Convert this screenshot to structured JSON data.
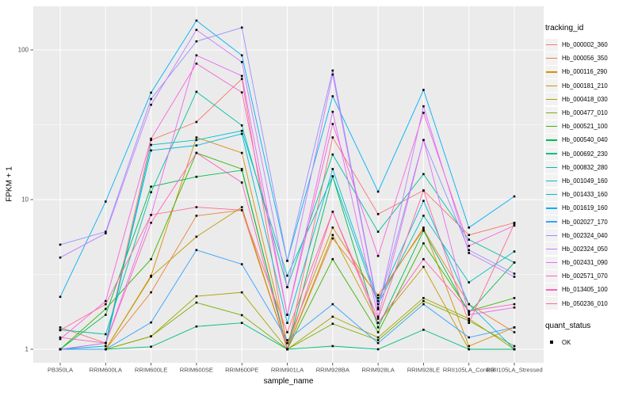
{
  "figure": {
    "xlabel": "sample_name",
    "ylabel": "FPKM + 1",
    "legend_title": "tracking_id",
    "legend2_title": "quant_status",
    "legend2_items": [
      {
        "label": "OK",
        "marker": "black-square"
      }
    ]
  },
  "chart_data": {
    "type": "line",
    "title": "",
    "xlabel": "sample_name",
    "ylabel": "FPKM + 1",
    "y_scale": "log10",
    "yticks": [
      1,
      10,
      100
    ],
    "ylim": [
      0.82,
      195
    ],
    "grid": "on",
    "legend_position": "right",
    "style": {
      "panel_bg": "#EBEBEB",
      "grid_color": "#FFFFFF",
      "point_color": "#000000",
      "axis_text_color": "#4D4D4D",
      "tick_color": "#333333",
      "legend_key_bg": "#F2F2F2"
    },
    "categories": [
      "PB350LA",
      "RRIM600LA",
      "RRIM600LE",
      "RRIM600SE",
      "RRIM600PE",
      "RRIM901LA",
      "RRIM928BA",
      "RRIM928LA",
      "RRIM928LE",
      "RRII105LA_Control",
      "RRII105LA_Stressed"
    ],
    "series": [
      {
        "name": "Hb_000002_360",
        "color": "#F8766D",
        "values": [
          1.4,
          1.1,
          25.0,
          33.0,
          64.0,
          1.0,
          26.0,
          8.0,
          11.5,
          5.8,
          7.0
        ]
      },
      {
        "name": "Hb_000056_350",
        "color": "#EA8331",
        "values": [
          1.0,
          1.0,
          2.4,
          7.8,
          8.5,
          1.0,
          5.5,
          2.3,
          6.3,
          2.0,
          1.3
        ]
      },
      {
        "name": "Hb_000116_290",
        "color": "#D89000",
        "values": [
          1.0,
          1.0,
          3.1,
          26.0,
          20.5,
          1.1,
          6.5,
          2.2,
          6.5,
          1.05,
          1.4
        ]
      },
      {
        "name": "Hb_000181_210",
        "color": "#C09B00",
        "values": [
          1.0,
          1.0,
          3.05,
          5.65,
          8.9,
          1.0,
          5.8,
          1.5,
          3.55,
          1.0,
          1.0
        ]
      },
      {
        "name": "Hb_000418_030",
        "color": "#A3A500",
        "values": [
          1.0,
          1.0,
          1.22,
          2.26,
          2.4,
          1.0,
          1.65,
          1.2,
          2.2,
          1.6,
          1.0
        ]
      },
      {
        "name": "Hb_000477_010",
        "color": "#7CAE00",
        "values": [
          1.0,
          1.0,
          1.22,
          2.05,
          1.69,
          1.0,
          1.48,
          1.15,
          2.1,
          1.55,
          1.05
        ]
      },
      {
        "name": "Hb_000521_100",
        "color": "#39B600",
        "values": [
          1.0,
          1.86,
          4.0,
          20.5,
          16.0,
          1.0,
          4.0,
          1.3,
          5.1,
          1.8,
          2.2
        ]
      },
      {
        "name": "Hb_000540_040",
        "color": "#00BB4E",
        "values": [
          1.0,
          1.7,
          12.2,
          14.2,
          15.7,
          1.0,
          14.3,
          1.4,
          6.2,
          1.75,
          3.8
        ]
      },
      {
        "name": "Hb_000692_230",
        "color": "#00BF7D",
        "values": [
          1.0,
          1.0,
          1.04,
          1.42,
          1.5,
          1.0,
          1.05,
          1.0,
          1.35,
          1.0,
          1.0
        ]
      },
      {
        "name": "Hb_000832_280",
        "color": "#00C1A3",
        "values": [
          1.35,
          1.26,
          11.2,
          52.5,
          31.3,
          2.6,
          20.0,
          6.1,
          14.8,
          5.4,
          3.8
        ]
      },
      {
        "name": "Hb_001049_160",
        "color": "#00BFC4",
        "values": [
          1.0,
          1.05,
          23.2,
          25.0,
          28.8,
          3.1,
          14.3,
          2.0,
          7.8,
          2.8,
          4.5
        ]
      },
      {
        "name": "Hb_001433_160",
        "color": "#00BAE0",
        "values": [
          1.0,
          1.1,
          21.3,
          23.0,
          27.5,
          1.5,
          16.0,
          2.1,
          9.8,
          2.0,
          1.0
        ]
      },
      {
        "name": "Hb_001619_160",
        "color": "#00B0F6",
        "values": [
          2.24,
          9.7,
          51.8,
          157.0,
          92.0,
          3.9,
          49.0,
          11.3,
          54.0,
          6.5,
          10.5
        ]
      },
      {
        "name": "Hb_002027_170",
        "color": "#35A2FF",
        "values": [
          1.0,
          1.0,
          1.51,
          4.6,
          3.7,
          1.15,
          2.0,
          1.1,
          2.0,
          1.2,
          1.4
        ]
      },
      {
        "name": "Hb_002324_040",
        "color": "#9590FF",
        "values": [
          5.0,
          6.1,
          47.0,
          114.0,
          141.0,
          3.9,
          72.8,
          1.9,
          25.0,
          4.6,
          3.2
        ]
      },
      {
        "name": "Hb_002324_050",
        "color": "#C77CFF",
        "values": [
          4.1,
          5.95,
          43.0,
          136.0,
          83.0,
          2.6,
          68.5,
          1.85,
          42.0,
          4.4,
          3.05
        ]
      },
      {
        "name": "Hb_002431_090",
        "color": "#E76BF3",
        "values": [
          1.0,
          1.1,
          7.9,
          92.0,
          67.0,
          1.7,
          38.6,
          1.65,
          25.0,
          1.7,
          1.9
        ]
      },
      {
        "name": "Hb_002571_070",
        "color": "#FA62DB",
        "values": [
          1.17,
          2.1,
          25.5,
          81.0,
          52.0,
          1.7,
          32.0,
          4.2,
          38.0,
          4.9,
          6.7
        ]
      },
      {
        "name": "Hb_013405_100",
        "color": "#FF62BC",
        "values": [
          1.2,
          1.1,
          7.0,
          20.5,
          13.0,
          1.0,
          8.3,
          1.5,
          4.0,
          1.8,
          2.0
        ]
      },
      {
        "name": "Hb_050236_010",
        "color": "#FF6A98",
        "values": [
          1.34,
          2.0,
          7.9,
          8.9,
          8.5,
          1.3,
          8.3,
          1.6,
          11.5,
          1.5,
          6.9
        ]
      }
    ]
  }
}
